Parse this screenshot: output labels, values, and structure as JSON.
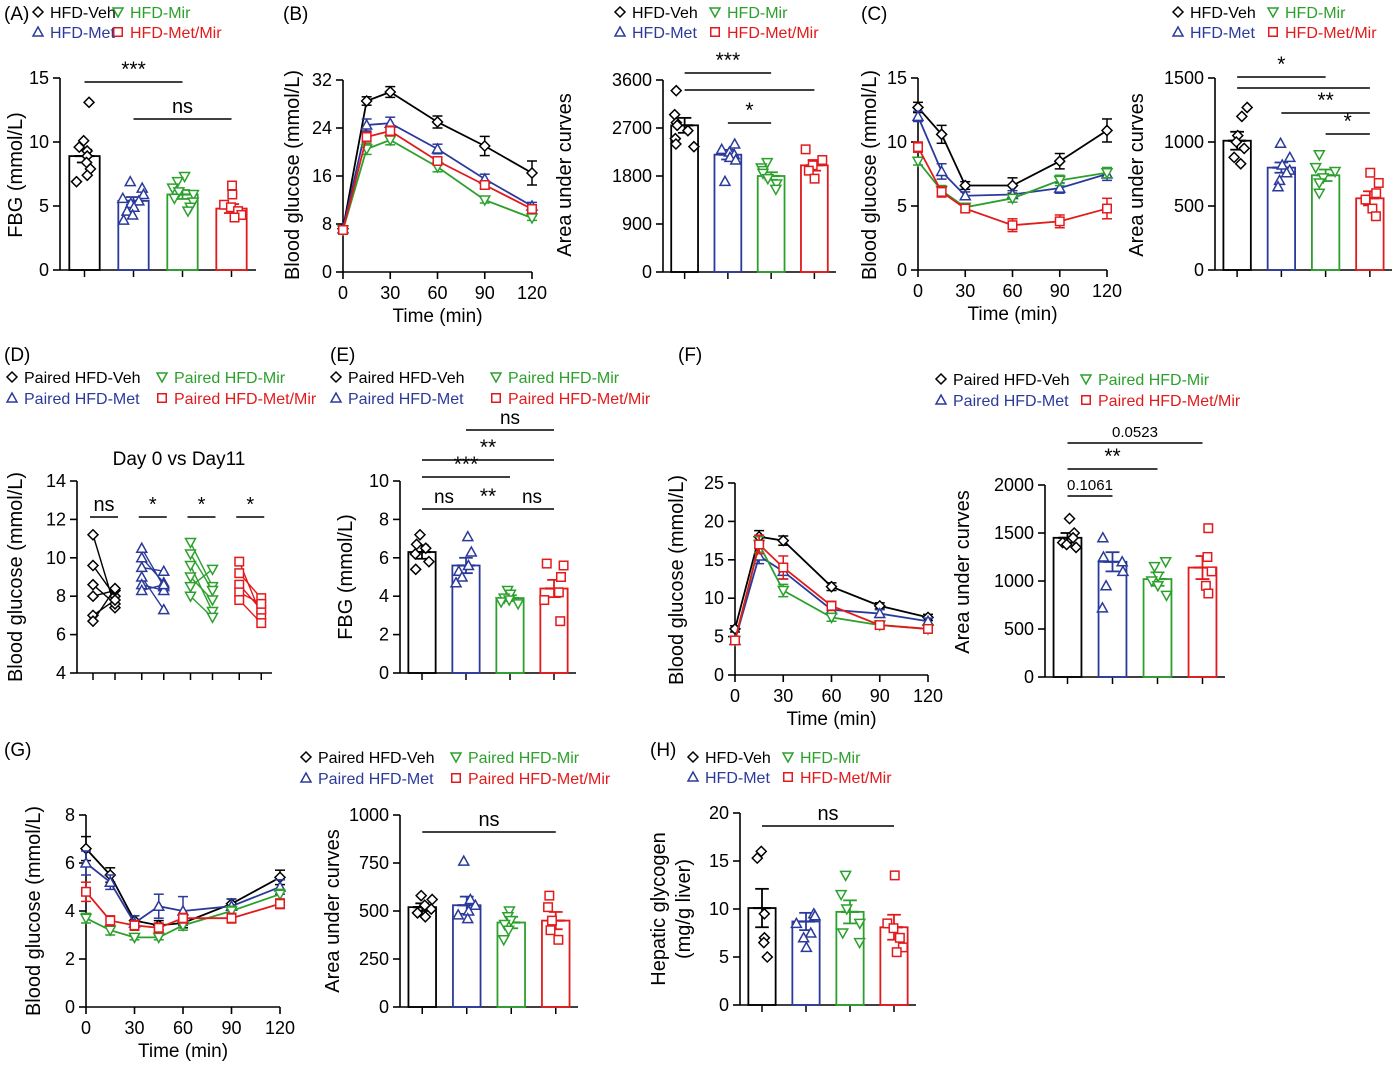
{
  "colors": {
    "veh": "#000000",
    "met": "#2b3a9a",
    "mir": "#2ca02c",
    "metmir": "#e31a1c"
  },
  "legends": {
    "main": [
      "HFD-Veh",
      "HFD-Mir",
      "HFD-Met",
      "HFD-Met/Mir"
    ],
    "paired": [
      "Paired HFD-Veh",
      "Paired HFD-Mir",
      "Paired HFD-Met",
      "Paired HFD-Met/Mir"
    ]
  },
  "chart_data": [
    {
      "id": "A",
      "label": "(A)",
      "type": "bar",
      "ylabel": "FBG (mmol/L)",
      "ylim": [
        0,
        15
      ],
      "yticks": [
        0,
        5,
        10,
        15
      ],
      "groups": [
        "HFD-Veh",
        "HFD-Met",
        "HFD-Mir",
        "HFD-Met/Mir"
      ],
      "means": [
        8.9,
        5.4,
        5.9,
        4.8
      ],
      "sems": [
        0.5,
        0.3,
        0.35,
        0.35
      ],
      "points": [
        [
          13.1,
          10.1,
          9.6,
          9.3,
          8.9,
          8.4,
          7.9,
          7.4,
          6.9
        ],
        [
          6.9,
          6.4,
          5.9,
          5.6,
          5.4,
          5.2,
          4.9,
          4.6,
          4.3,
          3.9
        ],
        [
          7.3,
          6.9,
          6.4,
          6.1,
          5.9,
          5.6,
          5.3,
          4.9,
          4.6
        ],
        [
          6.6,
          5.9,
          5.1,
          4.9,
          4.6,
          4.3,
          4.1
        ]
      ],
      "annotations": [
        {
          "text": "***",
          "from": 0,
          "to": 2
        },
        {
          "text": "ns",
          "from": 1,
          "to": 3
        }
      ]
    },
    {
      "id": "B1",
      "label": "(B)",
      "type": "line",
      "ylabel": "Blood glucose (mmol/L)",
      "xlabel": "Time (min)",
      "ylim": [
        0,
        32
      ],
      "yticks": [
        0,
        8,
        16,
        24,
        32
      ],
      "xlim": [
        0,
        120
      ],
      "xticks": [
        0,
        30,
        60,
        90,
        120
      ],
      "x": [
        0,
        15,
        30,
        60,
        90,
        120
      ],
      "series": [
        {
          "name": "HFD-Veh",
          "values": [
            7.2,
            28.5,
            30,
            25,
            21,
            16.5
          ],
          "sem": [
            0.5,
            0.7,
            0.9,
            1,
            1.6,
            2
          ]
        },
        {
          "name": "HFD-Met",
          "values": [
            7.2,
            24.5,
            24.8,
            20.5,
            15.5,
            11
          ],
          "sem": [
            0.5,
            1,
            1,
            0.8,
            0.8,
            0.6
          ]
        },
        {
          "name": "HFD-Mir",
          "values": [
            7,
            20.5,
            22,
            17.5,
            12,
            9
          ],
          "sem": [
            0.4,
            0.9,
            0.8,
            0.8,
            0.5,
            0.4
          ]
        },
        {
          "name": "HFD-Met/Mir",
          "values": [
            7,
            22.5,
            23.5,
            18.5,
            14.5,
            10.5
          ],
          "sem": [
            0.4,
            0.8,
            0.8,
            0.7,
            0.6,
            0.5
          ]
        }
      ]
    },
    {
      "id": "B2",
      "type": "bar",
      "ylabel": "Area under curves",
      "ylim": [
        0,
        3600
      ],
      "yticks": [
        0,
        900,
        1800,
        2700,
        3600
      ],
      "groups": [
        "HFD-Veh",
        "HFD-Met",
        "HFD-Mir",
        "HFD-Met/Mir"
      ],
      "means": [
        2750,
        2200,
        1800,
        2000
      ],
      "sems": [
        140,
        90,
        70,
        100
      ],
      "points": [
        [
          3400,
          2950,
          2800,
          2750,
          2650,
          2500,
          2400,
          2350
        ],
        [
          2400,
          2300,
          2250,
          2200,
          2150,
          2100,
          1700
        ],
        [
          2050,
          1950,
          1900,
          1850,
          1750,
          1650,
          1550
        ],
        [
          2300,
          2100,
          2000,
          1900,
          1750
        ]
      ],
      "annotations": [
        {
          "text": "***",
          "from": 0,
          "to": 2
        },
        {
          "text": "",
          "from": 0,
          "to": 3
        },
        {
          "text": "*",
          "from": 1,
          "to": 2
        }
      ]
    },
    {
      "id": "C1",
      "label": "(C)",
      "type": "line",
      "ylabel": "Blood glucose (mmol/L)",
      "xlabel": "Time (min)",
      "ylim": [
        0,
        15
      ],
      "yticks": [
        0,
        5,
        10,
        15
      ],
      "xlim": [
        0,
        120
      ],
      "xticks": [
        0,
        30,
        60,
        90,
        120
      ],
      "x": [
        0,
        15,
        30,
        60,
        90,
        120
      ],
      "series": [
        {
          "name": "HFD-Veh",
          "values": [
            12.7,
            10.6,
            6.6,
            6.6,
            8.5,
            10.9
          ],
          "sem": [
            0.4,
            0.7,
            0.3,
            0.6,
            0.6,
            0.9
          ]
        },
        {
          "name": "HFD-Met",
          "values": [
            12,
            7.7,
            5.8,
            5.9,
            6.4,
            7.5
          ],
          "sem": [
            0.4,
            0.6,
            0.3,
            0.3,
            0.4,
            0.5
          ]
        },
        {
          "name": "HFD-Mir",
          "values": [
            8.5,
            6.2,
            4.9,
            5.6,
            7,
            7.6
          ],
          "sem": [
            0.3,
            0.4,
            0.3,
            0.3,
            0.4,
            0.4
          ]
        },
        {
          "name": "HFD-Met/Mir",
          "values": [
            9.6,
            6.1,
            4.8,
            3.5,
            3.8,
            4.8
          ],
          "sem": [
            0.4,
            0.4,
            0.3,
            0.5,
            0.5,
            0.8
          ]
        }
      ]
    },
    {
      "id": "C2",
      "type": "bar",
      "ylabel": "Area under curves",
      "ylim": [
        0,
        1500
      ],
      "yticks": [
        0,
        500,
        1000,
        1500
      ],
      "groups": [
        "HFD-Veh",
        "HFD-Met",
        "HFD-Mir",
        "HFD-Met/Mir"
      ],
      "means": [
        1010,
        800,
        740,
        560
      ],
      "sems": [
        70,
        40,
        45,
        55
      ],
      "points": [
        [
          1270,
          1200,
          1050,
          1000,
          950,
          880,
          830
        ],
        [
          990,
          880,
          820,
          780,
          760,
          700,
          650
        ],
        [
          900,
          800,
          770,
          720,
          680,
          600
        ],
        [
          760,
          680,
          600,
          550,
          480,
          420
        ]
      ],
      "annotations": [
        {
          "text": "*",
          "from": 0,
          "to": 2
        },
        {
          "text": "",
          "from": 0,
          "to": 3
        },
        {
          "text": "**",
          "from": 1,
          "to": 3
        },
        {
          "text": "*",
          "from": 2,
          "to": 3
        }
      ]
    },
    {
      "id": "D",
      "label": "(D)",
      "type": "paired",
      "title": "Day 0 vs Day11",
      "ylabel": "Blood glucose (mmol/L)",
      "ylim": [
        4,
        14
      ],
      "yticks": [
        4,
        6,
        8,
        10,
        12,
        14
      ],
      "groups": [
        "Paired HFD-Veh",
        "Paired HFD-Met",
        "Paired HFD-Mir",
        "Paired HFD-Met/Mir"
      ],
      "pairs": [
        [
          [
            11.2,
            7.4
          ],
          [
            9.6,
            8
          ],
          [
            8.6,
            7.6
          ],
          [
            8,
            8.3
          ],
          [
            7,
            7.8
          ],
          [
            6.7,
            8.4
          ]
        ],
        [
          [
            10.5,
            8.5
          ],
          [
            10,
            8.7
          ],
          [
            9.5,
            9.3
          ],
          [
            9,
            7.3
          ],
          [
            8.6,
            8.3
          ],
          [
            8.3,
            8.6
          ]
        ],
        [
          [
            10.8,
            8.5
          ],
          [
            10.2,
            8.3
          ],
          [
            9.6,
            7.2
          ],
          [
            9,
            7.8
          ],
          [
            8.5,
            9.4
          ],
          [
            8,
            6.9
          ]
        ],
        [
          [
            9.8,
            7
          ],
          [
            9.2,
            7.9
          ],
          [
            8.6,
            7.3
          ],
          [
            8.2,
            7.6
          ],
          [
            7.8,
            6.6
          ]
        ]
      ],
      "annotations": [
        "ns",
        "*",
        "*",
        "*"
      ]
    },
    {
      "id": "E",
      "label": "(E)",
      "type": "bar",
      "ylabel": "FBG (mmol/L)",
      "ylim": [
        0,
        10
      ],
      "yticks": [
        0,
        2,
        4,
        6,
        8,
        10
      ],
      "groups": [
        "Paired HFD-Veh",
        "Paired HFD-Met",
        "Paired HFD-Mir",
        "Paired HFD-Met/Mir"
      ],
      "means": [
        6.3,
        5.6,
        3.9,
        4.4
      ],
      "sems": [
        0.35,
        0.4,
        0.15,
        0.45
      ],
      "points": [
        [
          7.2,
          6.7,
          6.5,
          6.2,
          5.8,
          5.4
        ],
        [
          7.1,
          6.3,
          5.6,
          5.3,
          5,
          4.7
        ],
        [
          4.3,
          4.1,
          3.9,
          3.8,
          3.7,
          3.6
        ],
        [
          5.7,
          5.6,
          5,
          4.2,
          3.8,
          2.7
        ]
      ],
      "annotations": [
        {
          "text": "ns",
          "from": 0,
          "to": 1
        },
        {
          "text": "**",
          "from": 1,
          "to": 2
        },
        {
          "text": "ns",
          "from": 2,
          "to": 3
        },
        {
          "text": "***",
          "from": 0,
          "to": 2
        },
        {
          "text": "**",
          "from": 0,
          "to": 3
        },
        {
          "text": "ns",
          "from": 1,
          "to": 3
        }
      ]
    },
    {
      "id": "F1",
      "label": "(F)",
      "type": "line",
      "ylabel": "Blood glucose (mmol/L)",
      "xlabel": "Time (min)",
      "ylim": [
        0,
        25
      ],
      "yticks": [
        0,
        5,
        10,
        15,
        20,
        25
      ],
      "xlim": [
        0,
        120
      ],
      "xticks": [
        0,
        30,
        60,
        90,
        120
      ],
      "x": [
        0,
        15,
        30,
        60,
        90,
        120
      ],
      "series": [
        {
          "name": "Paired HFD-Veh",
          "values": [
            6,
            18,
            17.5,
            11.5,
            9,
            7.5
          ],
          "sem": [
            0.4,
            0.8,
            0.6,
            0.5,
            0.4,
            0.4
          ]
        },
        {
          "name": "Paired HFD-Met",
          "values": [
            4.5,
            15.5,
            13.5,
            8.5,
            8,
            7
          ],
          "sem": [
            0.4,
            1,
            1,
            0.6,
            0.5,
            0.4
          ]
        },
        {
          "name": "Paired HFD-Mir",
          "values": [
            4.5,
            17,
            11,
            7.5,
            6.5,
            6
          ],
          "sem": [
            0.3,
            1,
            0.8,
            0.5,
            0.4,
            0.3
          ]
        },
        {
          "name": "Paired HFD-Met/Mir",
          "values": [
            4.5,
            17,
            14,
            9,
            6.5,
            6
          ],
          "sem": [
            0.3,
            1.2,
            1.5,
            0.6,
            0.4,
            0.3
          ]
        }
      ]
    },
    {
      "id": "F2",
      "type": "bar",
      "ylabel": "Area under curves",
      "ylim": [
        0,
        2000
      ],
      "yticks": [
        0,
        500,
        1000,
        1500,
        2000
      ],
      "groups": [
        "Paired HFD-Veh",
        "Paired HFD-Met",
        "Paired HFD-Mir",
        "Paired HFD-Met/Mir"
      ],
      "means": [
        1450,
        1200,
        1020,
        1140
      ],
      "sems": [
        50,
        100,
        70,
        120
      ],
      "points": [
        [
          1650,
          1500,
          1450,
          1400,
          1380,
          1350
        ],
        [
          1450,
          1250,
          1200,
          1100,
          950,
          720
        ],
        [
          1200,
          1150,
          1050,
          1000,
          950,
          850
        ],
        [
          1550,
          1250,
          1100,
          950,
          870
        ]
      ],
      "annotations": [
        {
          "text": "0.1061",
          "from": 0,
          "to": 1
        },
        {
          "text": "**",
          "from": 0,
          "to": 2
        },
        {
          "text": "0.0523",
          "from": 0,
          "to": 3
        }
      ]
    },
    {
      "id": "G1",
      "label": "(G)",
      "type": "line",
      "ylabel": "Blood glucose (mmol/L)",
      "xlabel": "Time (min)",
      "ylim": [
        0,
        8
      ],
      "yticks": [
        0,
        2,
        4,
        6,
        8
      ],
      "xlim": [
        0,
        120
      ],
      "xticks": [
        0,
        30,
        60,
        90,
        120
      ],
      "x": [
        0,
        15,
        30,
        45,
        60,
        90,
        120
      ],
      "series": [
        {
          "name": "Paired HFD-Veh",
          "values": [
            6.6,
            5.5,
            3.6,
            3.4,
            3.5,
            4.3,
            5.4
          ],
          "sem": [
            0.5,
            0.3,
            0.2,
            0.2,
            0.2,
            0.2,
            0.3
          ]
        },
        {
          "name": "Paired HFD-Met",
          "values": [
            6,
            5.2,
            3.5,
            4.2,
            4,
            4.2,
            5
          ],
          "sem": [
            0.5,
            0.3,
            0.3,
            0.5,
            0.6,
            0.3,
            0.3
          ]
        },
        {
          "name": "Paired HFD-Mir",
          "values": [
            3.7,
            3.2,
            2.9,
            2.9,
            3.4,
            4,
            4.7
          ],
          "sem": [
            0.2,
            0.2,
            0.1,
            0.1,
            0.2,
            0.2,
            0.2
          ]
        },
        {
          "name": "Paired HFD-Met/Mir",
          "values": [
            4.8,
            3.6,
            3.4,
            3.3,
            3.7,
            3.7,
            4.3
          ],
          "sem": [
            0.4,
            0.2,
            0.2,
            0.2,
            0.2,
            0.2,
            0.2
          ]
        }
      ]
    },
    {
      "id": "G2",
      "type": "bar",
      "ylabel": "Area under curves",
      "ylim": [
        0,
        1000
      ],
      "yticks": [
        0,
        250,
        500,
        750,
        1000
      ],
      "groups": [
        "Paired HFD-Veh",
        "Paired HFD-Met",
        "Paired HFD-Mir",
        "Paired HFD-Met/Mir"
      ],
      "means": [
        520,
        530,
        440,
        450
      ],
      "sems": [
        20,
        45,
        30,
        45
      ],
      "points": [
        [
          580,
          560,
          530,
          510,
          490,
          470
        ],
        [
          760,
          560,
          530,
          500,
          480,
          460
        ],
        [
          500,
          470,
          450,
          430,
          400,
          350
        ],
        [
          580,
          520,
          450,
          400,
          350
        ]
      ],
      "annotations": [
        {
          "text": "ns",
          "from": 0,
          "to": 3
        }
      ]
    },
    {
      "id": "H",
      "label": "(H)",
      "type": "bar",
      "ylabel": "Hepatic glycogen",
      "ylabel2": "(mg/g liver)",
      "ylim": [
        0,
        20
      ],
      "yticks": [
        0,
        5,
        10,
        15,
        20
      ],
      "groups": [
        "HFD-Veh",
        "HFD-Met",
        "HFD-Mir",
        "HFD-Met/Mir"
      ],
      "means": [
        10.1,
        8.7,
        9.7,
        8.1
      ],
      "sems": [
        2,
        0.9,
        1.2,
        1.3
      ],
      "points": [
        [
          16,
          15.3,
          9.5,
          7,
          6.5,
          5
        ],
        [
          9.5,
          9.3,
          8.5,
          7.5,
          7,
          6
        ],
        [
          13.5,
          11.5,
          10,
          8.5,
          7.5,
          6.5
        ],
        [
          13.5,
          8.5,
          8,
          7,
          6,
          5.5
        ]
      ],
      "annotations": [
        {
          "text": "ns",
          "from": 0,
          "to": 3
        }
      ]
    }
  ]
}
